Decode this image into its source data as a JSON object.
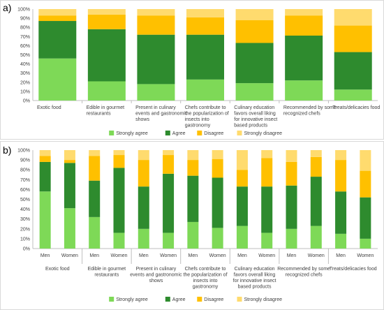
{
  "colors": {
    "Strongly agree": "#7ed957",
    "Agree": "#2e8b2e",
    "Disagree": "#ffc000",
    "Strongly disagree": "#ffdb6e"
  },
  "chart_data": [
    {
      "panel_label": "a)",
      "type": "bar",
      "stacked": true,
      "categories": [
        "Exotic food",
        "Edible in gourmet restaurants",
        "Present in culinary events and gastronomic shows",
        "Chefs contribute to the popularization of insects into gastronomy",
        "Culinary education favors overall liking for innovative insect based products",
        "Recommended by some recognized chefs",
        "Treats/delicacies food"
      ],
      "series": [
        {
          "name": "Strongly agree",
          "values": [
            46,
            21,
            18,
            23,
            19,
            22,
            12
          ]
        },
        {
          "name": "Agree",
          "values": [
            41,
            57,
            54,
            49,
            44,
            49,
            41
          ]
        },
        {
          "name": "Disagree",
          "values": [
            6,
            16,
            21,
            19,
            25,
            22,
            29
          ]
        },
        {
          "name": "Strongly disagree",
          "values": [
            7,
            6,
            7,
            9,
            12,
            7,
            18
          ]
        }
      ],
      "ylim": [
        0,
        100
      ],
      "yticks": [
        "0%",
        "10%",
        "20%",
        "30%",
        "40%",
        "50%",
        "60%",
        "70%",
        "80%",
        "90%",
        "100%"
      ],
      "legend": [
        "Strongly agree",
        "Agree",
        "Disagree",
        "Strongly disagree"
      ],
      "legend_position": "bottom",
      "grid": false
    },
    {
      "panel_label": "b)",
      "type": "bar",
      "stacked": true,
      "groups": [
        "Exotic food",
        "Edible in gourmet restaurants",
        "Present in culinary events and gastronomic shows",
        "Chefs contribute to the popularization of insects into gastronomy",
        "Culinary education favors overall liking for innovative insect based products",
        "Recommended by some recognized chefs",
        "Treats/delicacies food"
      ],
      "subcategories": [
        "Men",
        "Women"
      ],
      "series": [
        {
          "name": "Strongly agree",
          "values": [
            58,
            41,
            32,
            16,
            20,
            16,
            27,
            21,
            23,
            16,
            20,
            23,
            15,
            10
          ]
        },
        {
          "name": "Agree",
          "values": [
            30,
            46,
            37,
            66,
            43,
            60,
            47,
            51,
            40,
            47,
            44,
            50,
            43,
            42
          ]
        },
        {
          "name": "Disagree",
          "values": [
            6,
            3,
            25,
            13,
            27,
            19,
            16,
            19,
            17,
            29,
            24,
            20,
            32,
            27
          ]
        },
        {
          "name": "Strongly disagree",
          "values": [
            6,
            10,
            6,
            5,
            10,
            5,
            10,
            9,
            20,
            8,
            12,
            7,
            10,
            21
          ]
        }
      ],
      "ylim": [
        0,
        100
      ],
      "yticks": [
        "0%",
        "10%",
        "20%",
        "30%",
        "40%",
        "50%",
        "60%",
        "70%",
        "80%",
        "90%",
        "100%"
      ],
      "legend": [
        "Strongly agree",
        "Agree",
        "Disagree",
        "Strongly disagree"
      ],
      "legend_position": "bottom",
      "grid": false
    }
  ]
}
